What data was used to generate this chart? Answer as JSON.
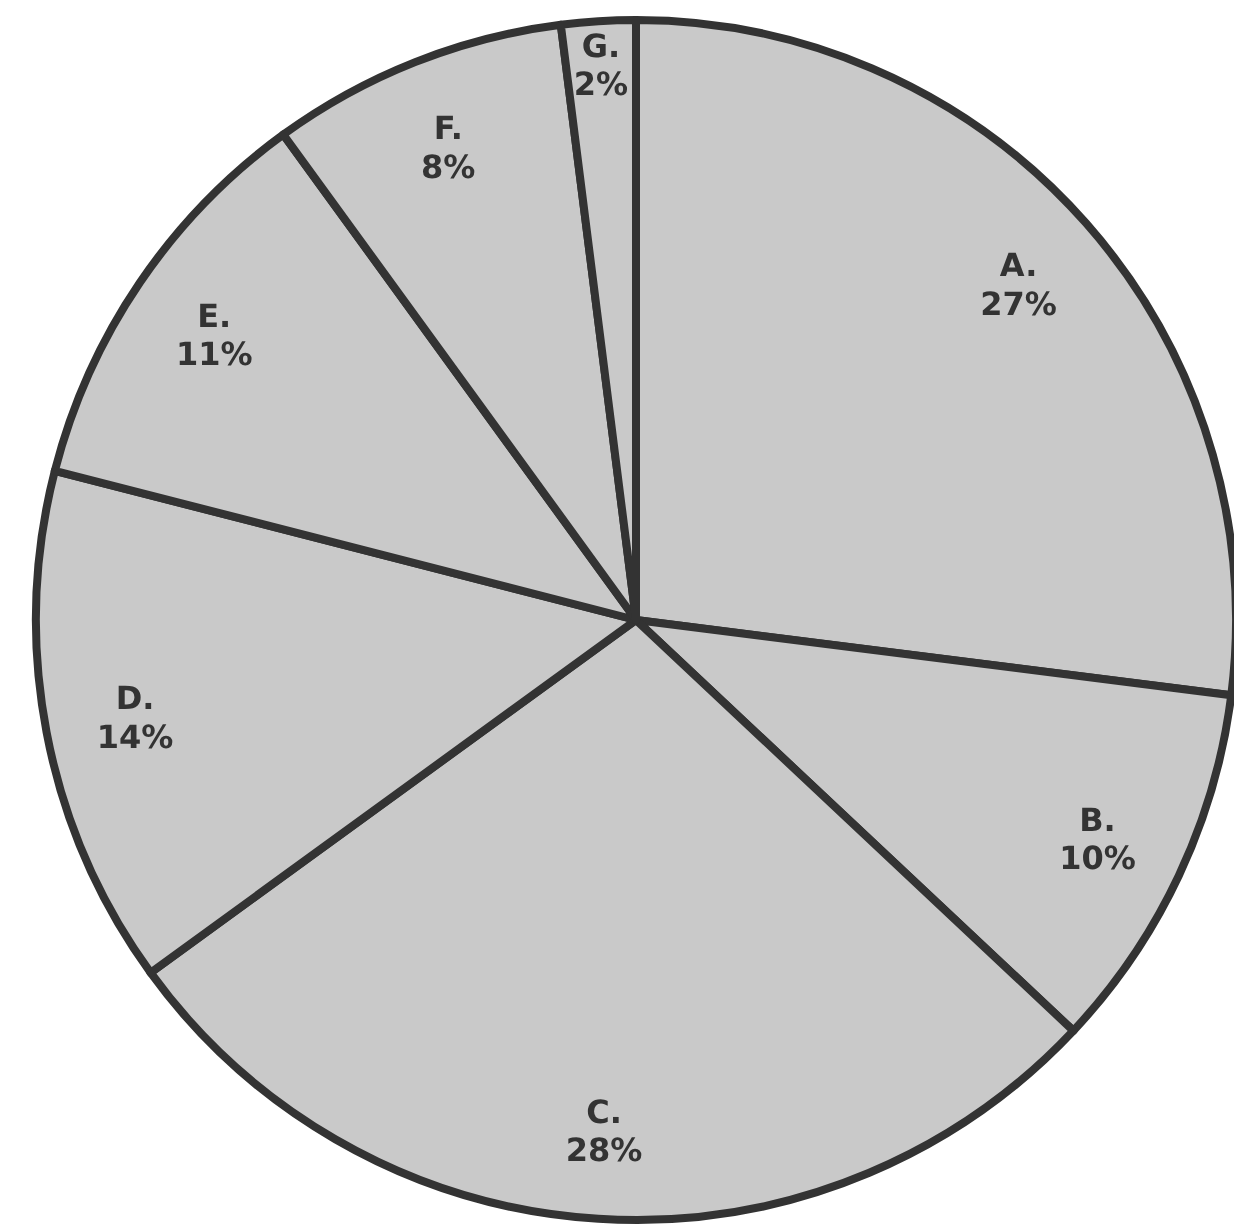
{
  "chart_data": {
    "type": "pie",
    "categories": [
      "A.",
      "B.",
      "C.",
      "D.",
      "E.",
      "F.",
      "G."
    ],
    "values": [
      27,
      10,
      28,
      14,
      11,
      8,
      2
    ],
    "colors": [
      "#c9c9c9",
      "#c9c9c9",
      "#c9c9c9",
      "#c9c9c9",
      "#c9c9c9",
      "#c9c9c9",
      "#c9c9c9"
    ],
    "value_labels": [
      "27%",
      "10%",
      "28%",
      "14%",
      "11%",
      "8%",
      "2%"
    ]
  }
}
